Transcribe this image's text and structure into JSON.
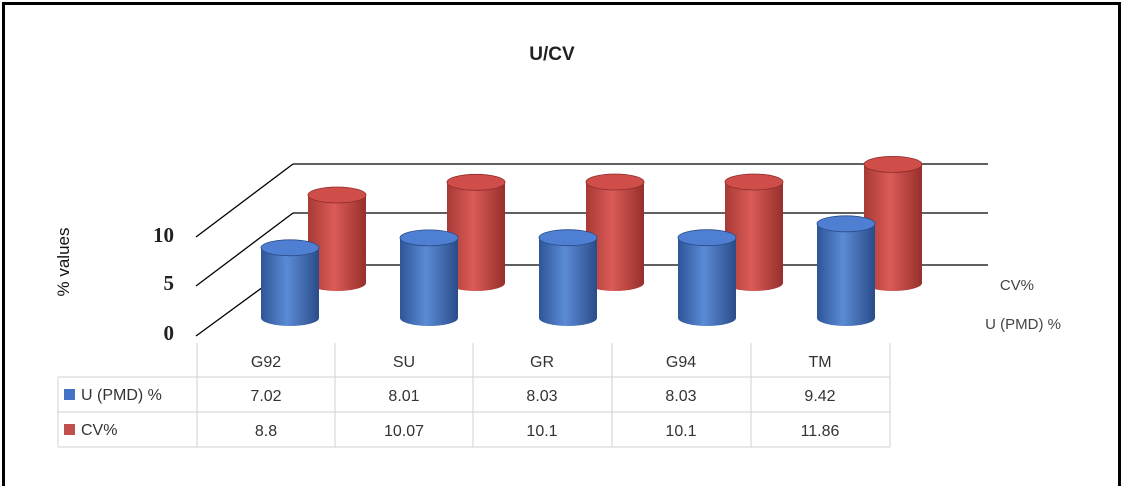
{
  "chart_data": {
    "type": "bar",
    "title": "U/CV",
    "ylabel": "% values",
    "xlabel": "",
    "ylim": [
      0,
      15
    ],
    "yticks": [
      0,
      5,
      10
    ],
    "categories": [
      "G92",
      "SU",
      "GR",
      "G94",
      "TM"
    ],
    "series": [
      {
        "name": "U (PMD) %",
        "values": [
          7.02,
          8.01,
          8.03,
          8.03,
          9.42
        ],
        "labels": [
          "7.02",
          "8.01",
          "8.03",
          "8.03",
          "9.42"
        ],
        "color": "#4472C4"
      },
      {
        "name": "CV%",
        "values": [
          8.8,
          10.07,
          10.1,
          10.1,
          11.86
        ],
        "labels": [
          "8.8",
          "10.07",
          "10.1",
          "10.1",
          "11.86"
        ],
        "color": "#C0504D"
      }
    ],
    "grid": true,
    "legend": "data-table",
    "style": "3d-cylinder"
  }
}
